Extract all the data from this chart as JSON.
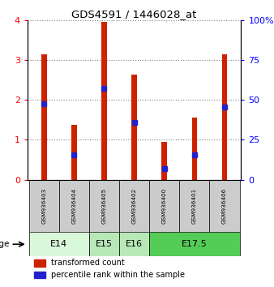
{
  "title": "GDS4591 / 1446028_at",
  "samples": [
    "GSM936403",
    "GSM936404",
    "GSM936405",
    "GSM936402",
    "GSM936400",
    "GSM936401",
    "GSM936406"
  ],
  "transformed_count": [
    3.15,
    1.38,
    3.95,
    2.63,
    0.95,
    1.55,
    3.15
  ],
  "percentile_rank": [
    47.5,
    15.75,
    57.0,
    35.75,
    7.0,
    15.75,
    45.75
  ],
  "age_groups": [
    {
      "label": "E14",
      "start": 0,
      "end": 2,
      "color": "#d9f7d9"
    },
    {
      "label": "E15",
      "start": 2,
      "end": 3,
      "color": "#b8e8b8"
    },
    {
      "label": "E16",
      "start": 3,
      "end": 4,
      "color": "#b8e8b8"
    },
    {
      "label": "E17.5",
      "start": 4,
      "end": 7,
      "color": "#55cc55"
    }
  ],
  "bar_color": "#cc2200",
  "marker_color": "#2222cc",
  "left_ylim": [
    0,
    4
  ],
  "right_ylim": [
    0,
    100
  ],
  "left_yticks": [
    0,
    1,
    2,
    3,
    4
  ],
  "right_yticks": [
    0,
    25,
    50,
    75,
    100
  ],
  "right_yticklabels": [
    "0",
    "25",
    "50",
    "75",
    "100%"
  ],
  "bar_width": 0.18
}
